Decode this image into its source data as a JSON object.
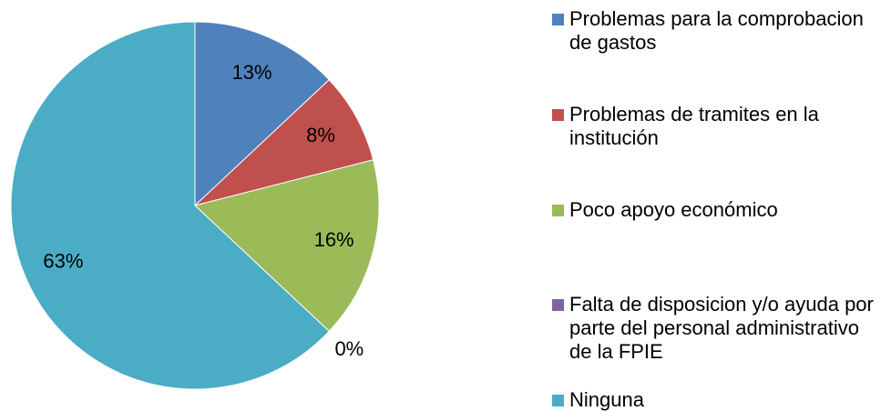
{
  "chart_data": {
    "type": "pie",
    "categories": [
      "Problemas para la comprobacion de gastos",
      "Problemas de tramites en la institución",
      "Poco apoyo económico",
      "Falta de disposicion y/o ayuda por parte del personal administrativo de la FPIE",
      "Ninguna"
    ],
    "values": [
      13,
      8,
      16,
      0,
      63
    ],
    "value_labels": [
      "13%",
      "8%",
      "16%",
      "0%",
      "63%"
    ],
    "colors": [
      "#4F81BD",
      "#C0504D",
      "#9BBB59",
      "#8064A2",
      "#4BACC6"
    ],
    "legend": "right"
  }
}
